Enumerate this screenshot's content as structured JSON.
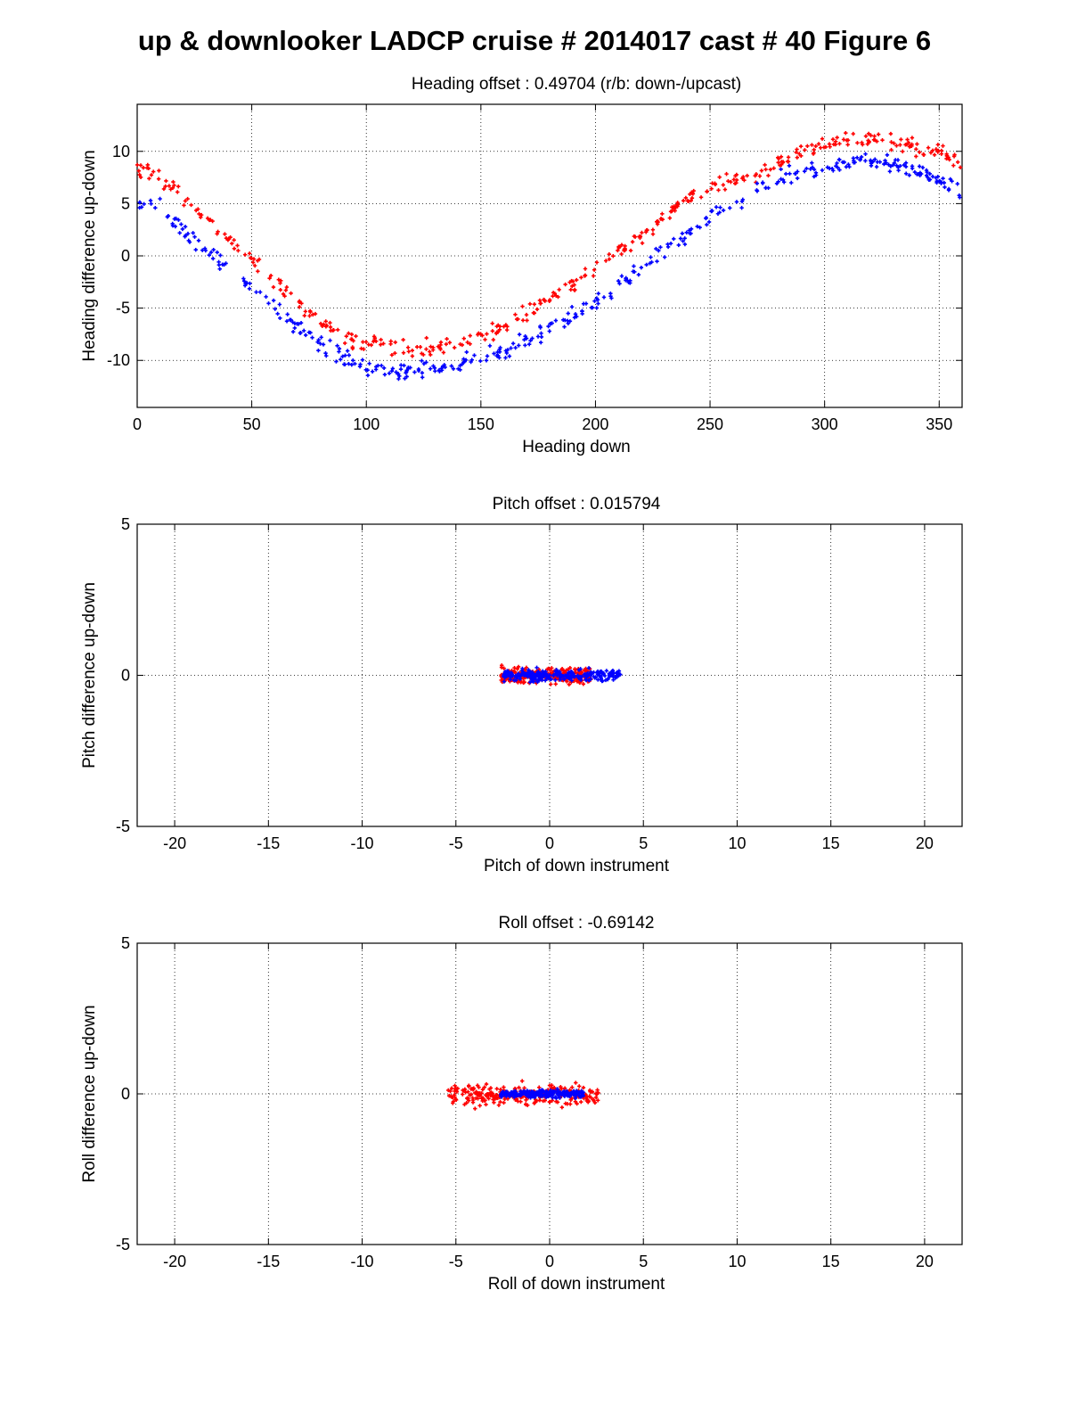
{
  "figure": {
    "title": "up & downlooker LADCP cruise # 2014017 cast # 40 Figure 6"
  },
  "colors": {
    "down": "#ff0000",
    "up": "#0000ff",
    "grid": "#000000"
  },
  "chart_data": [
    {
      "type": "scatter",
      "title": "Heading offset : 0.49704 (r/b: down-/upcast)",
      "xlabel": "Heading down",
      "ylabel": "Heading difference up-down",
      "xlim": [
        0,
        360
      ],
      "ylim": [
        -14.5,
        14.5
      ],
      "xticks": [
        0,
        50,
        100,
        150,
        200,
        250,
        300,
        350
      ],
      "yticks": [
        10,
        5,
        0,
        -5,
        -10
      ],
      "grid": true,
      "series": [
        {
          "color": "#ff0000",
          "points": [
            [
              0,
              8.5
            ],
            [
              10,
              7.5
            ],
            [
              20,
              5.8
            ],
            [
              30,
              3.5
            ],
            [
              40,
              1.8
            ],
            [
              50,
              -0.5
            ],
            [
              60,
              -2.5
            ],
            [
              70,
              -4.5
            ],
            [
              80,
              -6.3
            ],
            [
              90,
              -7.7
            ],
            [
              100,
              -8.4
            ],
            [
              110,
              -8.8
            ],
            [
              120,
              -9.0
            ],
            [
              130,
              -8.8
            ],
            [
              140,
              -8.4
            ],
            [
              150,
              -7.8
            ],
            [
              160,
              -6.8
            ],
            [
              170,
              -5.5
            ],
            [
              180,
              -4.0
            ],
            [
              190,
              -2.8
            ],
            [
              200,
              -1.2
            ],
            [
              210,
              0.5
            ],
            [
              220,
              2.0
            ],
            [
              230,
              3.8
            ],
            [
              240,
              5.3
            ],
            [
              250,
              6.5
            ],
            [
              260,
              7.3
            ],
            [
              270,
              8.0
            ],
            [
              280,
              9.0
            ],
            [
              290,
              10.0
            ],
            [
              300,
              10.8
            ],
            [
              310,
              11.2
            ],
            [
              320,
              11.3
            ],
            [
              330,
              11.0
            ],
            [
              340,
              10.5
            ],
            [
              350,
              9.8
            ],
            [
              360,
              8.8
            ]
          ]
        },
        {
          "color": "#0000ff",
          "points": [
            [
              0,
              5.0
            ],
            [
              10,
              4.5
            ],
            [
              20,
              2.5
            ],
            [
              30,
              0.5
            ],
            [
              40,
              -1.5
            ],
            [
              50,
              -3.0
            ],
            [
              60,
              -5.0
            ],
            [
              70,
              -7.0
            ],
            [
              80,
              -8.5
            ],
            [
              90,
              -9.8
            ],
            [
              100,
              -10.6
            ],
            [
              110,
              -11.0
            ],
            [
              120,
              -11.0
            ],
            [
              130,
              -10.8
            ],
            [
              140,
              -10.4
            ],
            [
              150,
              -9.8
            ],
            [
              160,
              -9.2
            ],
            [
              170,
              -8.0
            ],
            [
              180,
              -7.0
            ],
            [
              190,
              -5.8
            ],
            [
              200,
              -4.5
            ],
            [
              210,
              -3.0
            ],
            [
              220,
              -1.2
            ],
            [
              230,
              0.5
            ],
            [
              240,
              2.0
            ],
            [
              250,
              3.8
            ],
            [
              260,
              5.0
            ],
            [
              270,
              6.3
            ],
            [
              280,
              7.5
            ],
            [
              290,
              8.0
            ],
            [
              300,
              8.5
            ],
            [
              310,
              9.0
            ],
            [
              320,
              9.2
            ],
            [
              330,
              8.8
            ],
            [
              340,
              8.2
            ],
            [
              350,
              7.2
            ],
            [
              360,
              6.0
            ]
          ]
        }
      ]
    },
    {
      "type": "scatter",
      "title": "Pitch offset : 0.015794",
      "xlabel": "Pitch of down instrument",
      "ylabel": "Pitch difference up-down",
      "xlim": [
        -22,
        22
      ],
      "ylim": [
        -5,
        5
      ],
      "xticks": [
        -20,
        -15,
        -10,
        -5,
        0,
        5,
        10,
        15,
        20
      ],
      "yticks": [
        5,
        0,
        -5
      ],
      "grid": true,
      "series": [
        {
          "color": "#ff0000",
          "x_range": [
            -2.6,
            2.2
          ],
          "y_center": 0.0,
          "y_spread": 0.3
        },
        {
          "color": "#0000ff",
          "x_range": [
            -2.5,
            3.8
          ],
          "y_center": 0.0,
          "y_spread": 0.18
        }
      ]
    },
    {
      "type": "scatter",
      "title": "Roll offset : -0.69142",
      "xlabel": "Roll of down instrument",
      "ylabel": "Roll difference up-down",
      "xlim": [
        -22,
        22
      ],
      "ylim": [
        -5,
        5
      ],
      "xticks": [
        -20,
        -15,
        -10,
        -5,
        0,
        5,
        10,
        15,
        20
      ],
      "yticks": [
        5,
        0,
        -5
      ],
      "grid": true,
      "series": [
        {
          "color": "#ff0000",
          "x_range": [
            -5.5,
            2.6
          ],
          "y_center": -0.05,
          "y_spread": 0.35
        },
        {
          "color": "#0000ff",
          "x_range": [
            -2.6,
            1.8
          ],
          "y_center": 0.0,
          "y_spread": 0.12
        }
      ]
    }
  ]
}
